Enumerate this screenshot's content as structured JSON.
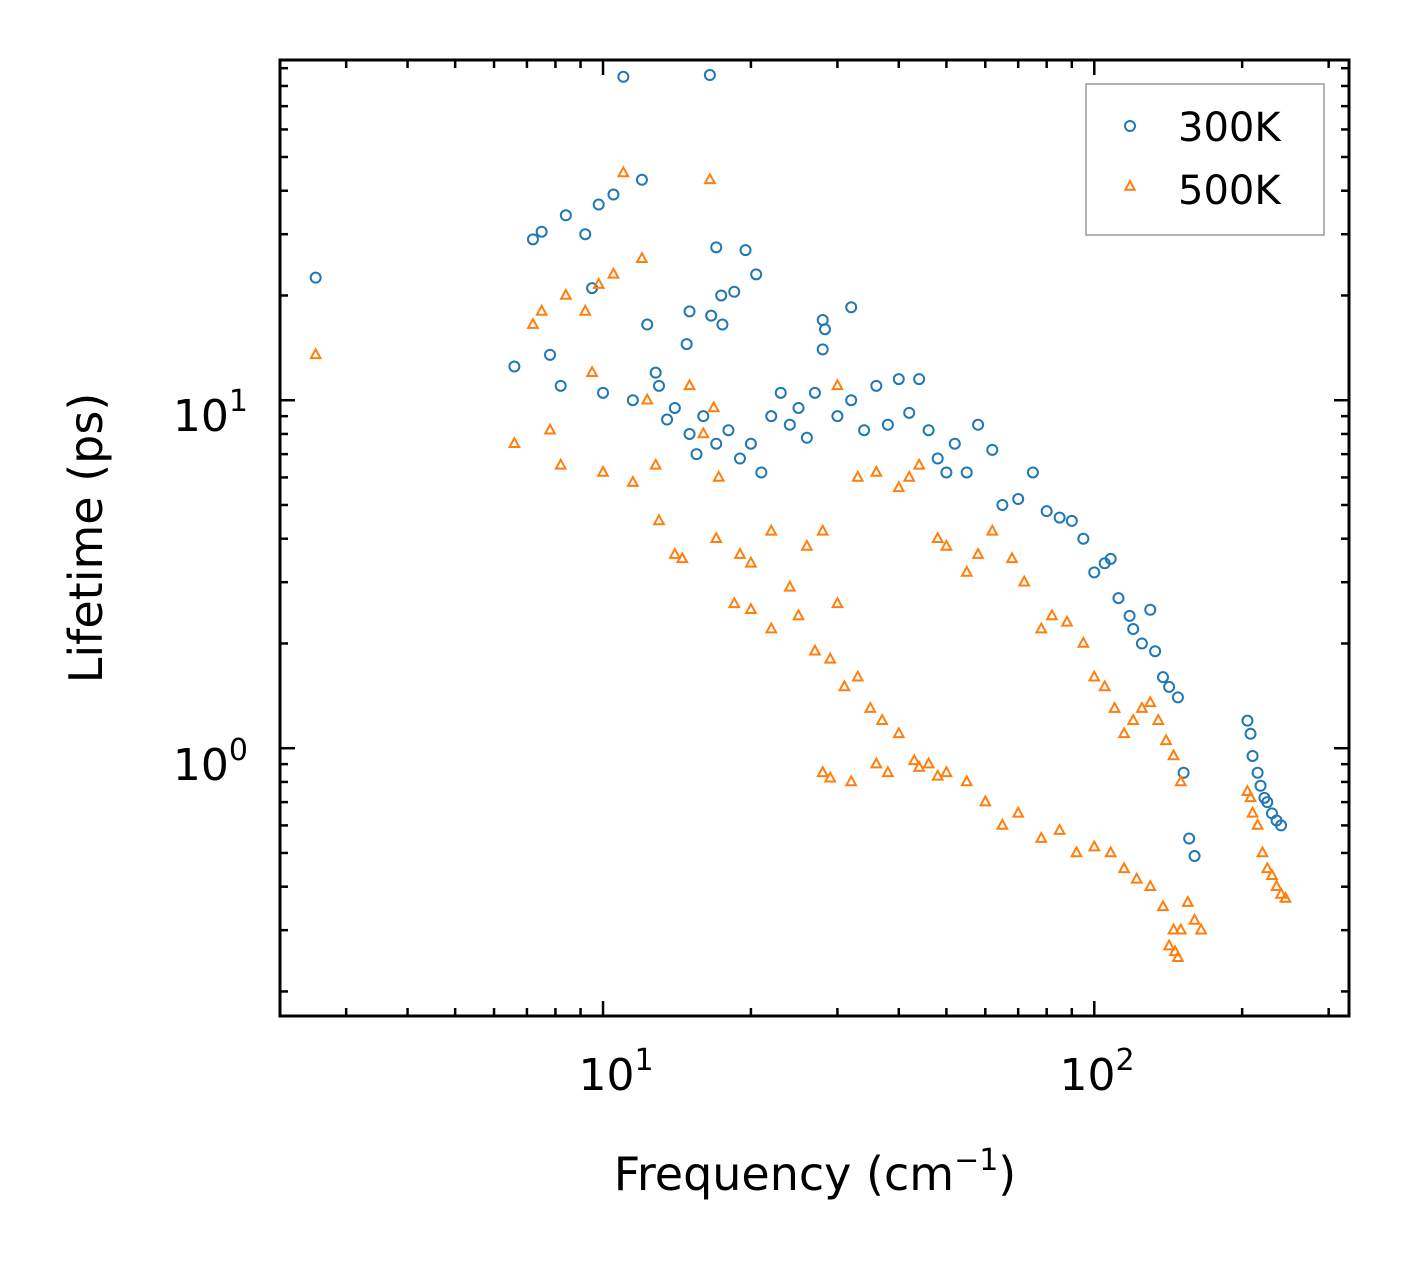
{
  "chart_data": {
    "type": "scatter",
    "xscale": "log",
    "yscale": "log",
    "xlim": [
      2.2,
      330
    ],
    "ylim": [
      0.17,
      95
    ],
    "xlabel": "Frequency (cm",
    "xlabel_sup": "−1",
    "xlabel_suffix": ")",
    "ylabel": "Lifetime (ps)",
    "xticks": [
      {
        "base": "10",
        "exp": "1",
        "value": 10
      },
      {
        "base": "10",
        "exp": "2",
        "value": 100
      }
    ],
    "yticks": [
      {
        "base": "10",
        "exp": "0",
        "value": 1
      },
      {
        "base": "10",
        "exp": "1",
        "value": 10
      }
    ],
    "legend_position": "top-right",
    "series": [
      {
        "name": "300K",
        "marker": "circle",
        "color": "#1f77b4",
        "points": [
          [
            2.6,
            22.5
          ],
          [
            6.6,
            12.5
          ],
          [
            7.2,
            29
          ],
          [
            7.5,
            30.5
          ],
          [
            7.8,
            13.5
          ],
          [
            8.2,
            11
          ],
          [
            8.4,
            34
          ],
          [
            9.2,
            30
          ],
          [
            9.5,
            21
          ],
          [
            9.8,
            36.5
          ],
          [
            10,
            10.5
          ],
          [
            10.5,
            39
          ],
          [
            11,
            85
          ],
          [
            11.5,
            10
          ],
          [
            12,
            43
          ],
          [
            12.3,
            16.5
          ],
          [
            12.8,
            12
          ],
          [
            16.5,
            86
          ],
          [
            16.6,
            17.5
          ],
          [
            17,
            27.5
          ],
          [
            17.4,
            20
          ],
          [
            17.5,
            16.5
          ],
          [
            18.5,
            20.5
          ],
          [
            19.5,
            27
          ],
          [
            20.5,
            23
          ],
          [
            28,
            17
          ],
          [
            28.3,
            16
          ],
          [
            32,
            18.5
          ],
          [
            15,
            18
          ],
          [
            14.8,
            14.5
          ],
          [
            13,
            11
          ],
          [
            13.5,
            8.8
          ],
          [
            14,
            9.5
          ],
          [
            15,
            8
          ],
          [
            15.5,
            7
          ],
          [
            16,
            9
          ],
          [
            17,
            7.5
          ],
          [
            18,
            8.2
          ],
          [
            19,
            6.8
          ],
          [
            20,
            7.5
          ],
          [
            21,
            6.2
          ],
          [
            22,
            9
          ],
          [
            23,
            10.5
          ],
          [
            24,
            8.5
          ],
          [
            25,
            9.5
          ],
          [
            26,
            7.8
          ],
          [
            27,
            10.5
          ],
          [
            28,
            14
          ],
          [
            30,
            9
          ],
          [
            32,
            10
          ],
          [
            34,
            8.2
          ],
          [
            36,
            11
          ],
          [
            38,
            8.5
          ],
          [
            40,
            11.5
          ],
          [
            42,
            9.2
          ],
          [
            44,
            11.5
          ],
          [
            46,
            8.2
          ],
          [
            48,
            6.8
          ],
          [
            50,
            6.2
          ],
          [
            52,
            7.5
          ],
          [
            55,
            6.2
          ],
          [
            58,
            8.5
          ],
          [
            62,
            7.2
          ],
          [
            65,
            5
          ],
          [
            70,
            5.2
          ],
          [
            75,
            6.2
          ],
          [
            80,
            4.8
          ],
          [
            85,
            4.6
          ],
          [
            90,
            4.5
          ],
          [
            95,
            4
          ],
          [
            100,
            3.2
          ],
          [
            105,
            3.4
          ],
          [
            108,
            3.5
          ],
          [
            112,
            2.7
          ],
          [
            118,
            2.4
          ],
          [
            120,
            2.2
          ],
          [
            125,
            2
          ],
          [
            130,
            2.5
          ],
          [
            133,
            1.9
          ],
          [
            138,
            1.6
          ],
          [
            142,
            1.5
          ],
          [
            148,
            1.4
          ],
          [
            152,
            0.85
          ],
          [
            156,
            0.55
          ],
          [
            160,
            0.49
          ],
          [
            205,
            1.2
          ],
          [
            208,
            1.1
          ],
          [
            210,
            0.95
          ],
          [
            215,
            0.85
          ],
          [
            218,
            0.78
          ],
          [
            222,
            0.72
          ],
          [
            225,
            0.7
          ],
          [
            230,
            0.65
          ],
          [
            235,
            0.62
          ],
          [
            240,
            0.6
          ]
        ]
      },
      {
        "name": "500K",
        "marker": "triangle",
        "color": "#ff7f0e",
        "points": [
          [
            2.6,
            13.5
          ],
          [
            6.6,
            7.5
          ],
          [
            7.2,
            16.5
          ],
          [
            7.5,
            18
          ],
          [
            7.8,
            8.2
          ],
          [
            8.2,
            6.5
          ],
          [
            8.4,
            20
          ],
          [
            9.2,
            18
          ],
          [
            9.5,
            12
          ],
          [
            9.8,
            21.5
          ],
          [
            10,
            6.2
          ],
          [
            10.5,
            23
          ],
          [
            11,
            45
          ],
          [
            11.5,
            5.8
          ],
          [
            12,
            25.5
          ],
          [
            12.3,
            10
          ],
          [
            12.8,
            6.5
          ],
          [
            16.5,
            43
          ],
          [
            16.8,
            9.5
          ],
          [
            17.2,
            6
          ],
          [
            13,
            4.5
          ],
          [
            14,
            3.6
          ],
          [
            14.5,
            3.5
          ],
          [
            15,
            11
          ],
          [
            16,
            8
          ],
          [
            17,
            4
          ],
          [
            19,
            3.6
          ],
          [
            20,
            3.4
          ],
          [
            22,
            4.2
          ],
          [
            24,
            2.9
          ],
          [
            26,
            3.8
          ],
          [
            28,
            4.2
          ],
          [
            30,
            11
          ],
          [
            33,
            6
          ],
          [
            36,
            6.2
          ],
          [
            40,
            5.6
          ],
          [
            42,
            6
          ],
          [
            44,
            6.5
          ],
          [
            48,
            4
          ],
          [
            50,
            3.8
          ],
          [
            55,
            3.2
          ],
          [
            58,
            3.6
          ],
          [
            62,
            4.2
          ],
          [
            68,
            3.5
          ],
          [
            72,
            3
          ],
          [
            78,
            2.2
          ],
          [
            82,
            2.4
          ],
          [
            88,
            2.3
          ],
          [
            95,
            2
          ],
          [
            100,
            1.6
          ],
          [
            105,
            1.5
          ],
          [
            110,
            1.3
          ],
          [
            115,
            1.1
          ],
          [
            120,
            1.2
          ],
          [
            125,
            1.3
          ],
          [
            130,
            1.35
          ],
          [
            135,
            1.2
          ],
          [
            140,
            1.05
          ],
          [
            145,
            0.95
          ],
          [
            150,
            0.8
          ],
          [
            18.5,
            2.6
          ],
          [
            20,
            2.5
          ],
          [
            22,
            2.2
          ],
          [
            25,
            2.4
          ],
          [
            27,
            1.9
          ],
          [
            29,
            1.8
          ],
          [
            30,
            2.6
          ],
          [
            31,
            1.5
          ],
          [
            33,
            1.6
          ],
          [
            35,
            1.3
          ],
          [
            37,
            1.2
          ],
          [
            40,
            1.1
          ],
          [
            43,
            0.92
          ],
          [
            46,
            0.9
          ],
          [
            50,
            0.85
          ],
          [
            55,
            0.8
          ],
          [
            60,
            0.7
          ],
          [
            65,
            0.6
          ],
          [
            70,
            0.65
          ],
          [
            78,
            0.55
          ],
          [
            85,
            0.58
          ],
          [
            92,
            0.5
          ],
          [
            100,
            0.52
          ],
          [
            108,
            0.5
          ],
          [
            115,
            0.45
          ],
          [
            122,
            0.42
          ],
          [
            130,
            0.4
          ],
          [
            138,
            0.35
          ],
          [
            145,
            0.3
          ],
          [
            150,
            0.3
          ],
          [
            155,
            0.36
          ],
          [
            160,
            0.32
          ],
          [
            165,
            0.3
          ],
          [
            28,
            0.85
          ],
          [
            29,
            0.82
          ],
          [
            32,
            0.8
          ],
          [
            36,
            0.9
          ],
          [
            38,
            0.85
          ],
          [
            44,
            0.88
          ],
          [
            48,
            0.83
          ],
          [
            142,
            0.27
          ],
          [
            146,
            0.26
          ],
          [
            148,
            0.25
          ],
          [
            205,
            0.75
          ],
          [
            208,
            0.72
          ],
          [
            210,
            0.65
          ],
          [
            215,
            0.6
          ],
          [
            220,
            0.5
          ],
          [
            225,
            0.45
          ],
          [
            230,
            0.43
          ],
          [
            235,
            0.4
          ],
          [
            240,
            0.38
          ],
          [
            245,
            0.37
          ]
        ]
      }
    ]
  }
}
